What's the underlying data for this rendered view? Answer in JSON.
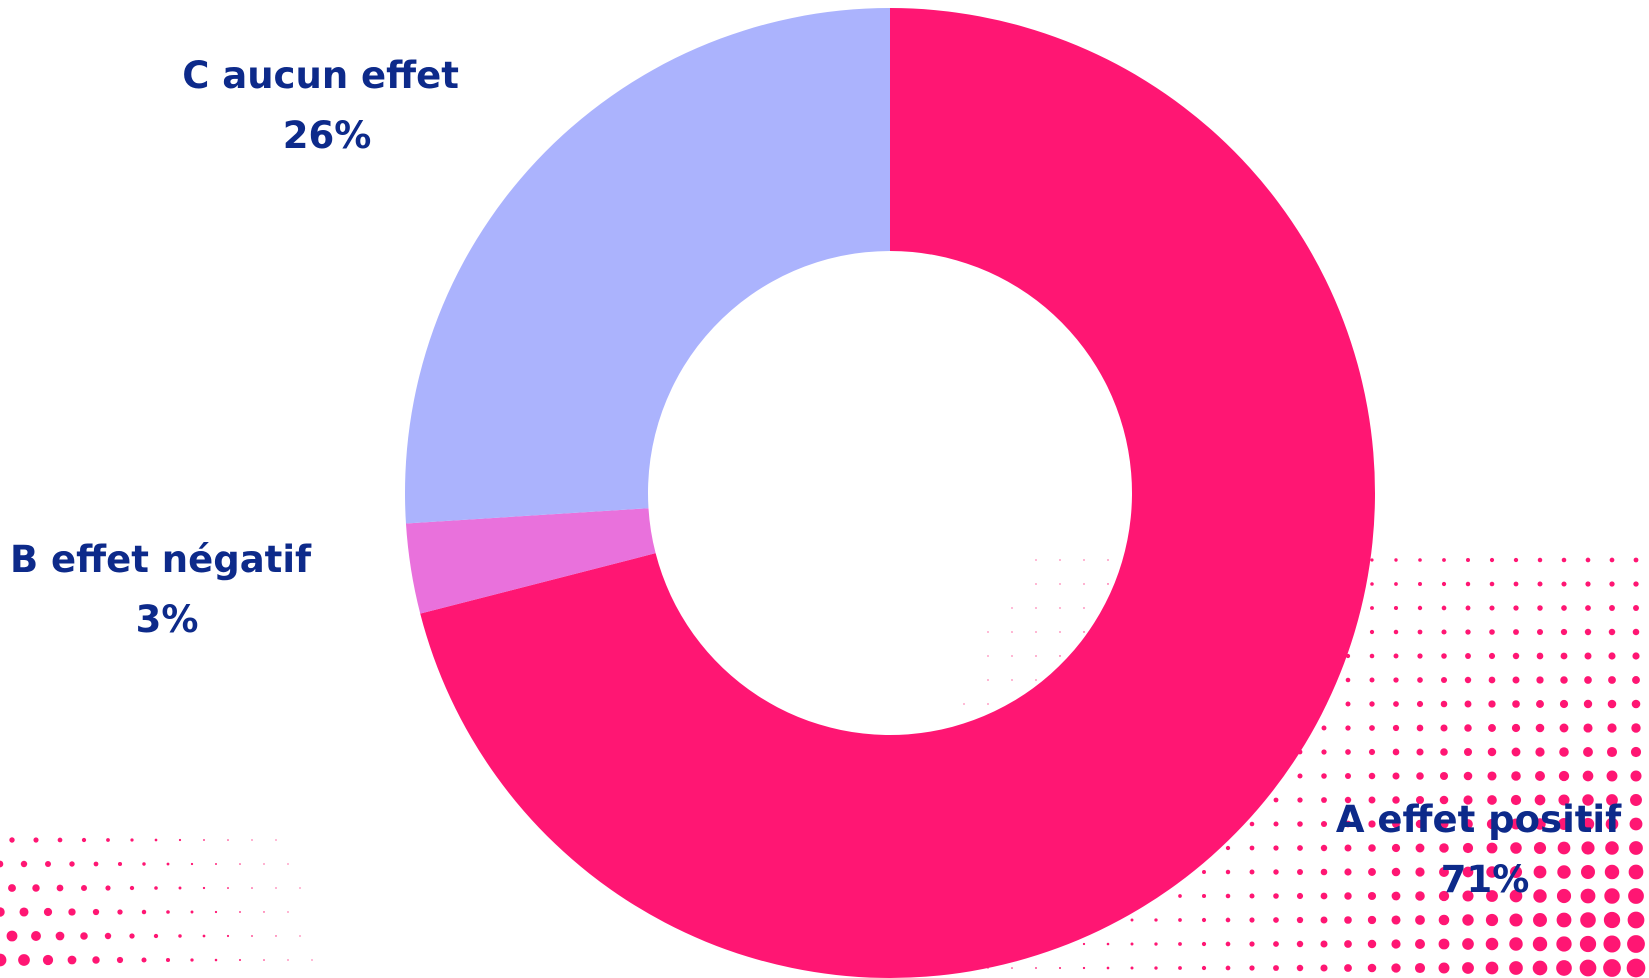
{
  "chart_data": {
    "type": "pie",
    "variant": "donut",
    "title": "",
    "categories": [
      "A effet positif",
      "B effet négatif",
      "C aucun effet"
    ],
    "values": [
      71,
      3,
      26
    ],
    "value_labels": [
      "71%",
      "3%",
      "26%"
    ],
    "colors": [
      "#ff1673",
      "#e971dc",
      "#abb3fd"
    ],
    "start_angle_deg": 0,
    "direction": "clockwise",
    "legend": "none",
    "label_color": "#0d2a8a"
  },
  "decoration": {
    "dot_pattern_color": "#ff1673"
  }
}
